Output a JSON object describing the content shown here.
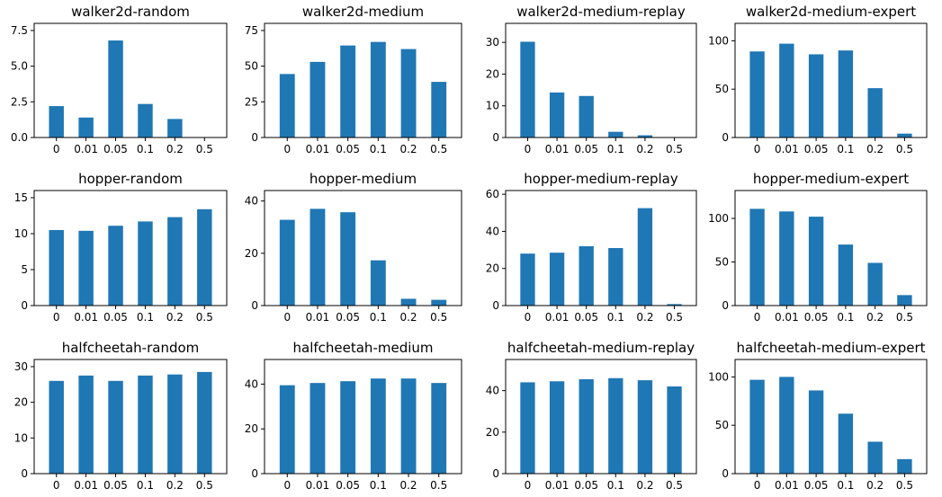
{
  "style": {
    "bar_color": "#1f77b4",
    "axis_color": "#000000",
    "background": "#ffffff"
  },
  "chart_data": [
    {
      "type": "bar",
      "title": "walker2d-random",
      "categories": [
        "0",
        "0.01",
        "0.05",
        "0.1",
        "0.2",
        "0.5"
      ],
      "values": [
        2.2,
        1.4,
        6.8,
        2.35,
        1.3,
        0.0
      ],
      "ylim": [
        0,
        8
      ],
      "yticks": [
        0.0,
        2.5,
        5.0,
        7.5
      ],
      "ytick_labels": [
        "0.0",
        "2.5",
        "5.0",
        "7.5"
      ],
      "grid": false
    },
    {
      "type": "bar",
      "title": "walker2d-medium",
      "categories": [
        "0",
        "0.01",
        "0.05",
        "0.1",
        "0.2",
        "0.5"
      ],
      "values": [
        44.5,
        53,
        64.5,
        67,
        62,
        39
      ],
      "ylim": [
        0,
        80
      ],
      "yticks": [
        0,
        25,
        50,
        75
      ],
      "ytick_labels": [
        "0",
        "25",
        "50",
        "75"
      ],
      "grid": false
    },
    {
      "type": "bar",
      "title": "walker2d-medium-replay",
      "categories": [
        "0",
        "0.01",
        "0.05",
        "0.1",
        "0.2",
        "0.5"
      ],
      "values": [
        30.2,
        14.2,
        13.1,
        1.8,
        0.7,
        0.0
      ],
      "ylim": [
        0,
        36
      ],
      "yticks": [
        0,
        10,
        20,
        30
      ],
      "ytick_labels": [
        "0",
        "10",
        "20",
        "30"
      ],
      "grid": false
    },
    {
      "type": "bar",
      "title": "walker2d-medium-expert",
      "categories": [
        "0",
        "0.01",
        "0.05",
        "0.1",
        "0.2",
        "0.5"
      ],
      "values": [
        89,
        97,
        86,
        90,
        51,
        4
      ],
      "ylim": [
        0,
        118
      ],
      "yticks": [
        0,
        50,
        100
      ],
      "ytick_labels": [
        "0",
        "50",
        "100"
      ],
      "grid": false
    },
    {
      "type": "bar",
      "title": "hopper-random",
      "categories": [
        "0",
        "0.01",
        "0.05",
        "0.1",
        "0.2",
        "0.5"
      ],
      "values": [
        10.5,
        10.4,
        11.1,
        11.7,
        12.3,
        13.4
      ],
      "ylim": [
        0,
        16
      ],
      "yticks": [
        0,
        5,
        10,
        15
      ],
      "ytick_labels": [
        "0",
        "5",
        "10",
        "15"
      ],
      "grid": false
    },
    {
      "type": "bar",
      "title": "hopper-medium",
      "categories": [
        "0",
        "0.01",
        "0.05",
        "0.1",
        "0.2",
        "0.5"
      ],
      "values": [
        32.8,
        37,
        35.7,
        17.3,
        2.6,
        2.2
      ],
      "ylim": [
        0,
        44
      ],
      "yticks": [
        0,
        20,
        40
      ],
      "ytick_labels": [
        "0",
        "20",
        "40"
      ],
      "grid": false
    },
    {
      "type": "bar",
      "title": "hopper-medium-replay",
      "categories": [
        "0",
        "0.01",
        "0.05",
        "0.1",
        "0.2",
        "0.5"
      ],
      "values": [
        28,
        28.5,
        32,
        31,
        52.5,
        0.8
      ],
      "ylim": [
        0,
        62
      ],
      "yticks": [
        0,
        20,
        40,
        60
      ],
      "ytick_labels": [
        "0",
        "20",
        "40",
        "60"
      ],
      "grid": false
    },
    {
      "type": "bar",
      "title": "hopper-medium-expert",
      "categories": [
        "0",
        "0.01",
        "0.05",
        "0.1",
        "0.2",
        "0.5"
      ],
      "values": [
        111,
        108,
        102,
        70,
        49,
        12
      ],
      "ylim": [
        0,
        132
      ],
      "yticks": [
        0,
        50,
        100
      ],
      "ytick_labels": [
        "0",
        "50",
        "100"
      ],
      "grid": false
    },
    {
      "type": "bar",
      "title": "halfcheetah-random",
      "categories": [
        "0",
        "0.01",
        "0.05",
        "0.1",
        "0.2",
        "0.5"
      ],
      "values": [
        26,
        27.5,
        26,
        27.5,
        27.8,
        28.5
      ],
      "ylim": [
        0,
        32
      ],
      "yticks": [
        0,
        10,
        20,
        30
      ],
      "ytick_labels": [
        "0",
        "10",
        "20",
        "30"
      ],
      "grid": false
    },
    {
      "type": "bar",
      "title": "halfcheetah-medium",
      "categories": [
        "0",
        "0.01",
        "0.05",
        "0.1",
        "0.2",
        "0.5"
      ],
      "values": [
        39.5,
        40.5,
        41.3,
        42.5,
        42.5,
        40.5
      ],
      "ylim": [
        0,
        51
      ],
      "yticks": [
        0,
        20,
        40
      ],
      "ytick_labels": [
        "0",
        "20",
        "40"
      ],
      "grid": false
    },
    {
      "type": "bar",
      "title": "halfcheetah-medium-replay",
      "categories": [
        "0",
        "0.01",
        "0.05",
        "0.1",
        "0.2",
        "0.5"
      ],
      "values": [
        44,
        44.5,
        45.5,
        46,
        45,
        42
      ],
      "ylim": [
        0,
        55
      ],
      "yticks": [
        0,
        20,
        40
      ],
      "ytick_labels": [
        "0",
        "20",
        "40"
      ],
      "grid": false
    },
    {
      "type": "bar",
      "title": "halfcheetah-medium-expert",
      "categories": [
        "0",
        "0.01",
        "0.05",
        "0.1",
        "0.2",
        "0.5"
      ],
      "values": [
        97,
        100,
        86,
        62,
        33,
        15
      ],
      "ylim": [
        0,
        118
      ],
      "yticks": [
        0,
        50,
        100
      ],
      "ytick_labels": [
        "0",
        "50",
        "100"
      ],
      "grid": false
    }
  ]
}
